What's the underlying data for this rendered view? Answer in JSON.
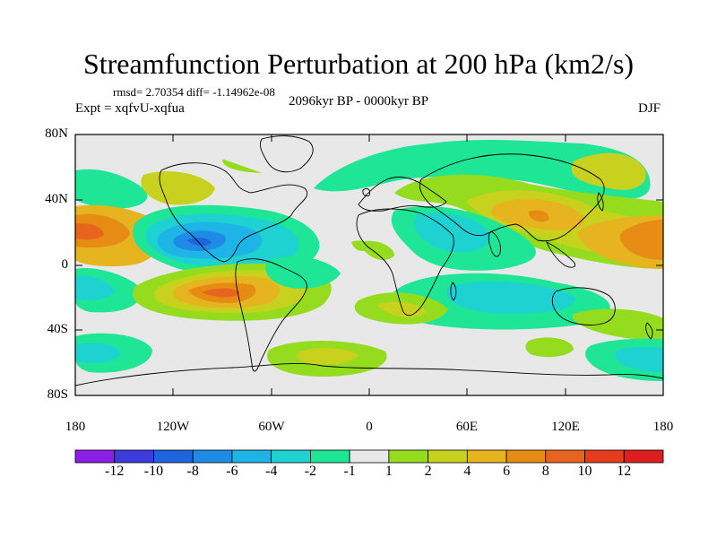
{
  "title": "Streamfunction Perturbation at 200 hPa (km2/s)",
  "stats": "rmsd= 2.70354 diff= -1.14962e-08",
  "left_label": "Expt = xqfvU-xqfua",
  "center_label": "2096kyr BP - 0000kyr BP",
  "right_label": "DJF",
  "lat_labels": [
    "80N",
    "40N",
    "0",
    "40S",
    "80S"
  ],
  "lon_labels": [
    "180",
    "120W",
    "60W",
    "0",
    "60E",
    "120E",
    "180"
  ],
  "colorbar": {
    "labels": [
      "-12",
      "-10",
      "-8",
      "-6",
      "-4",
      "-2",
      "-1",
      "1",
      "2",
      "4",
      "6",
      "8",
      "10",
      "12"
    ],
    "colors": [
      "#8c1ee6",
      "#3c3cdc",
      "#1e64dc",
      "#1e8ce6",
      "#1eb4e6",
      "#1ed2d2",
      "#1ee696",
      "#e8e8e8",
      "#96dc1e",
      "#c8d21e",
      "#e6b41e",
      "#e68c14",
      "#e6641e",
      "#e63c1e",
      "#dc1e1e"
    ]
  }
}
